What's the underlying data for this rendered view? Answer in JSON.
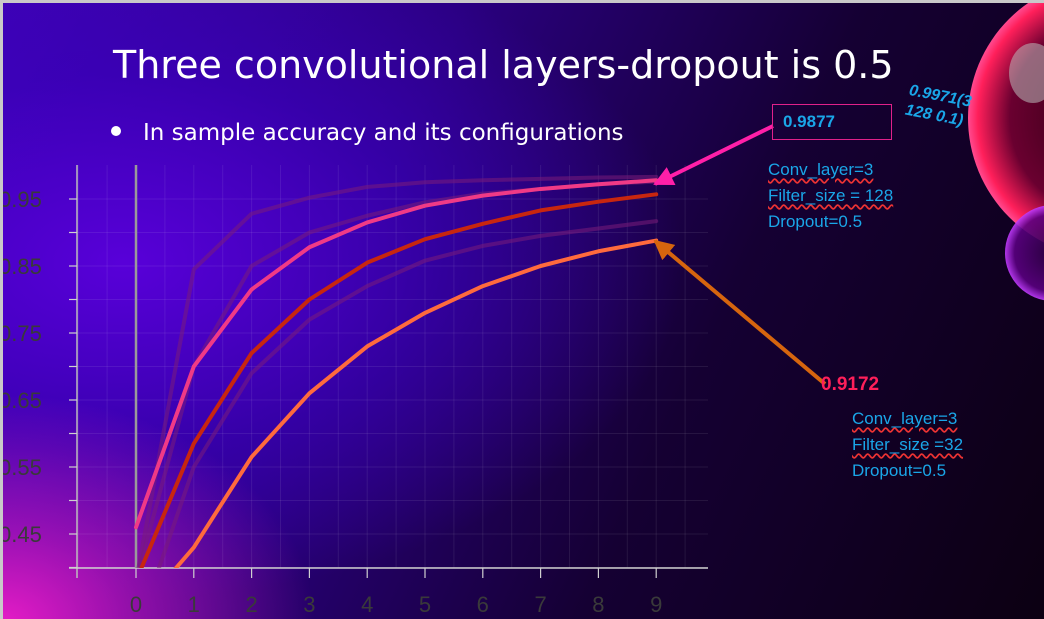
{
  "title": "Three convolutional layers-dropout is 0.5",
  "bullet": "In sample accuracy and its configurations",
  "colors": {
    "best_line": "#f03a86",
    "red_line": "#c8260f",
    "orange_line": "#ff6a3d",
    "faint_line": "#7a1b7a",
    "pink_arrow": "#ff1fa8",
    "orange_arrow": "#d6650e",
    "annotation": "#1aa6e8"
  },
  "annotations": {
    "best_value": "0.9877",
    "best_config": [
      "Conv_layer=3",
      "Filter_size = 128",
      "Dropout=0.5"
    ],
    "rotated_note": [
      "0.9971(3",
      "128 0.1)"
    ],
    "second_value": "0.9172",
    "second_config": [
      "Conv_layer=3",
      "Filter_size =32",
      "Dropout=0.5"
    ]
  },
  "chart_data": {
    "type": "line",
    "x": [
      0,
      1,
      2,
      3,
      4,
      5,
      6,
      7,
      8,
      9
    ],
    "xticks": [
      "0",
      "1",
      "2",
      "3",
      "4",
      "5",
      "6",
      "7",
      "8",
      "9"
    ],
    "yticks": [
      "0.45",
      "0.55",
      "0.65",
      "0.75",
      "0.85",
      "0.95"
    ],
    "ytick_values": [
      0.45,
      0.55,
      0.65,
      0.75,
      0.85,
      0.95
    ],
    "ylim": [
      0.4,
      0.99
    ],
    "xlim": [
      -1,
      10
    ],
    "grid": true,
    "series": [
      {
        "style": "faint",
        "values": [
          0.38,
          0.845,
          0.928,
          0.952,
          0.968,
          0.975,
          0.978,
          0.98,
          0.982,
          0.983
        ]
      },
      {
        "style": "faint",
        "values": [
          0.38,
          0.7,
          0.85,
          0.9,
          0.925,
          0.945,
          0.958,
          0.965,
          0.972,
          0.976
        ]
      },
      {
        "style": "faint",
        "values": [
          0.3,
          0.55,
          0.69,
          0.77,
          0.82,
          0.858,
          0.88,
          0.895,
          0.906,
          0.917
        ]
      },
      {
        "style": "best",
        "values": [
          0.46,
          0.7,
          0.815,
          0.878,
          0.915,
          0.94,
          0.955,
          0.965,
          0.972,
          0.978
        ]
      },
      {
        "style": "red",
        "values": [
          0.38,
          0.585,
          0.72,
          0.8,
          0.855,
          0.89,
          0.913,
          0.933,
          0.946,
          0.957
        ]
      },
      {
        "style": "orange",
        "values": [
          0.33,
          0.43,
          0.565,
          0.66,
          0.73,
          0.78,
          0.82,
          0.85,
          0.872,
          0.888
        ]
      }
    ]
  }
}
